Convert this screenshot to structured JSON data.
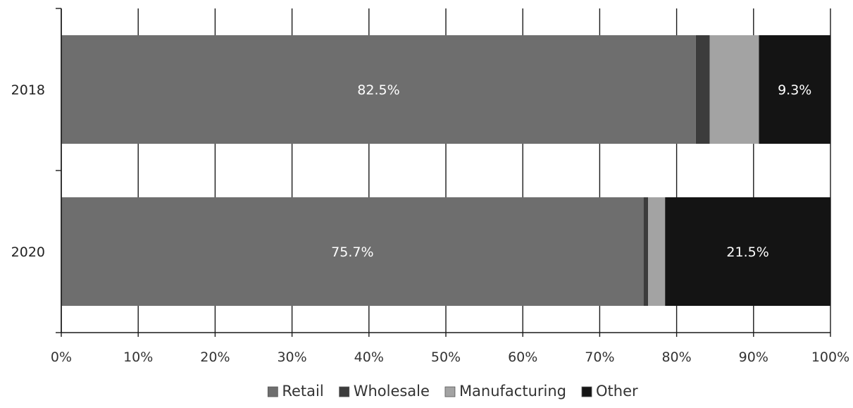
{
  "chart_data": {
    "type": "bar",
    "orientation": "horizontal",
    "stacked": "percent",
    "categories": [
      "2018",
      "2020"
    ],
    "series": [
      {
        "name": "Retail",
        "color": "#6e6e6e",
        "values": [
          82.5,
          75.7
        ],
        "labels": [
          "82.5%",
          "75.7%"
        ]
      },
      {
        "name": "Wholesale",
        "color": "#3c3c3c",
        "values": [
          1.8,
          0.6
        ],
        "labels": [
          "",
          ""
        ]
      },
      {
        "name": "Manufacturing",
        "color": "#a3a3a3",
        "values": [
          6.4,
          2.2
        ],
        "labels": [
          "",
          ""
        ]
      },
      {
        "name": "Other",
        "color": "#141414",
        "values": [
          9.3,
          21.5
        ],
        "labels": [
          "9.3%",
          "21.5%"
        ]
      }
    ],
    "xlim": [
      0,
      100
    ],
    "xticks": [
      "0%",
      "10%",
      "20%",
      "30%",
      "40%",
      "50%",
      "60%",
      "70%",
      "80%",
      "90%",
      "100%"
    ],
    "grid": true,
    "legend_position": "bottom"
  }
}
